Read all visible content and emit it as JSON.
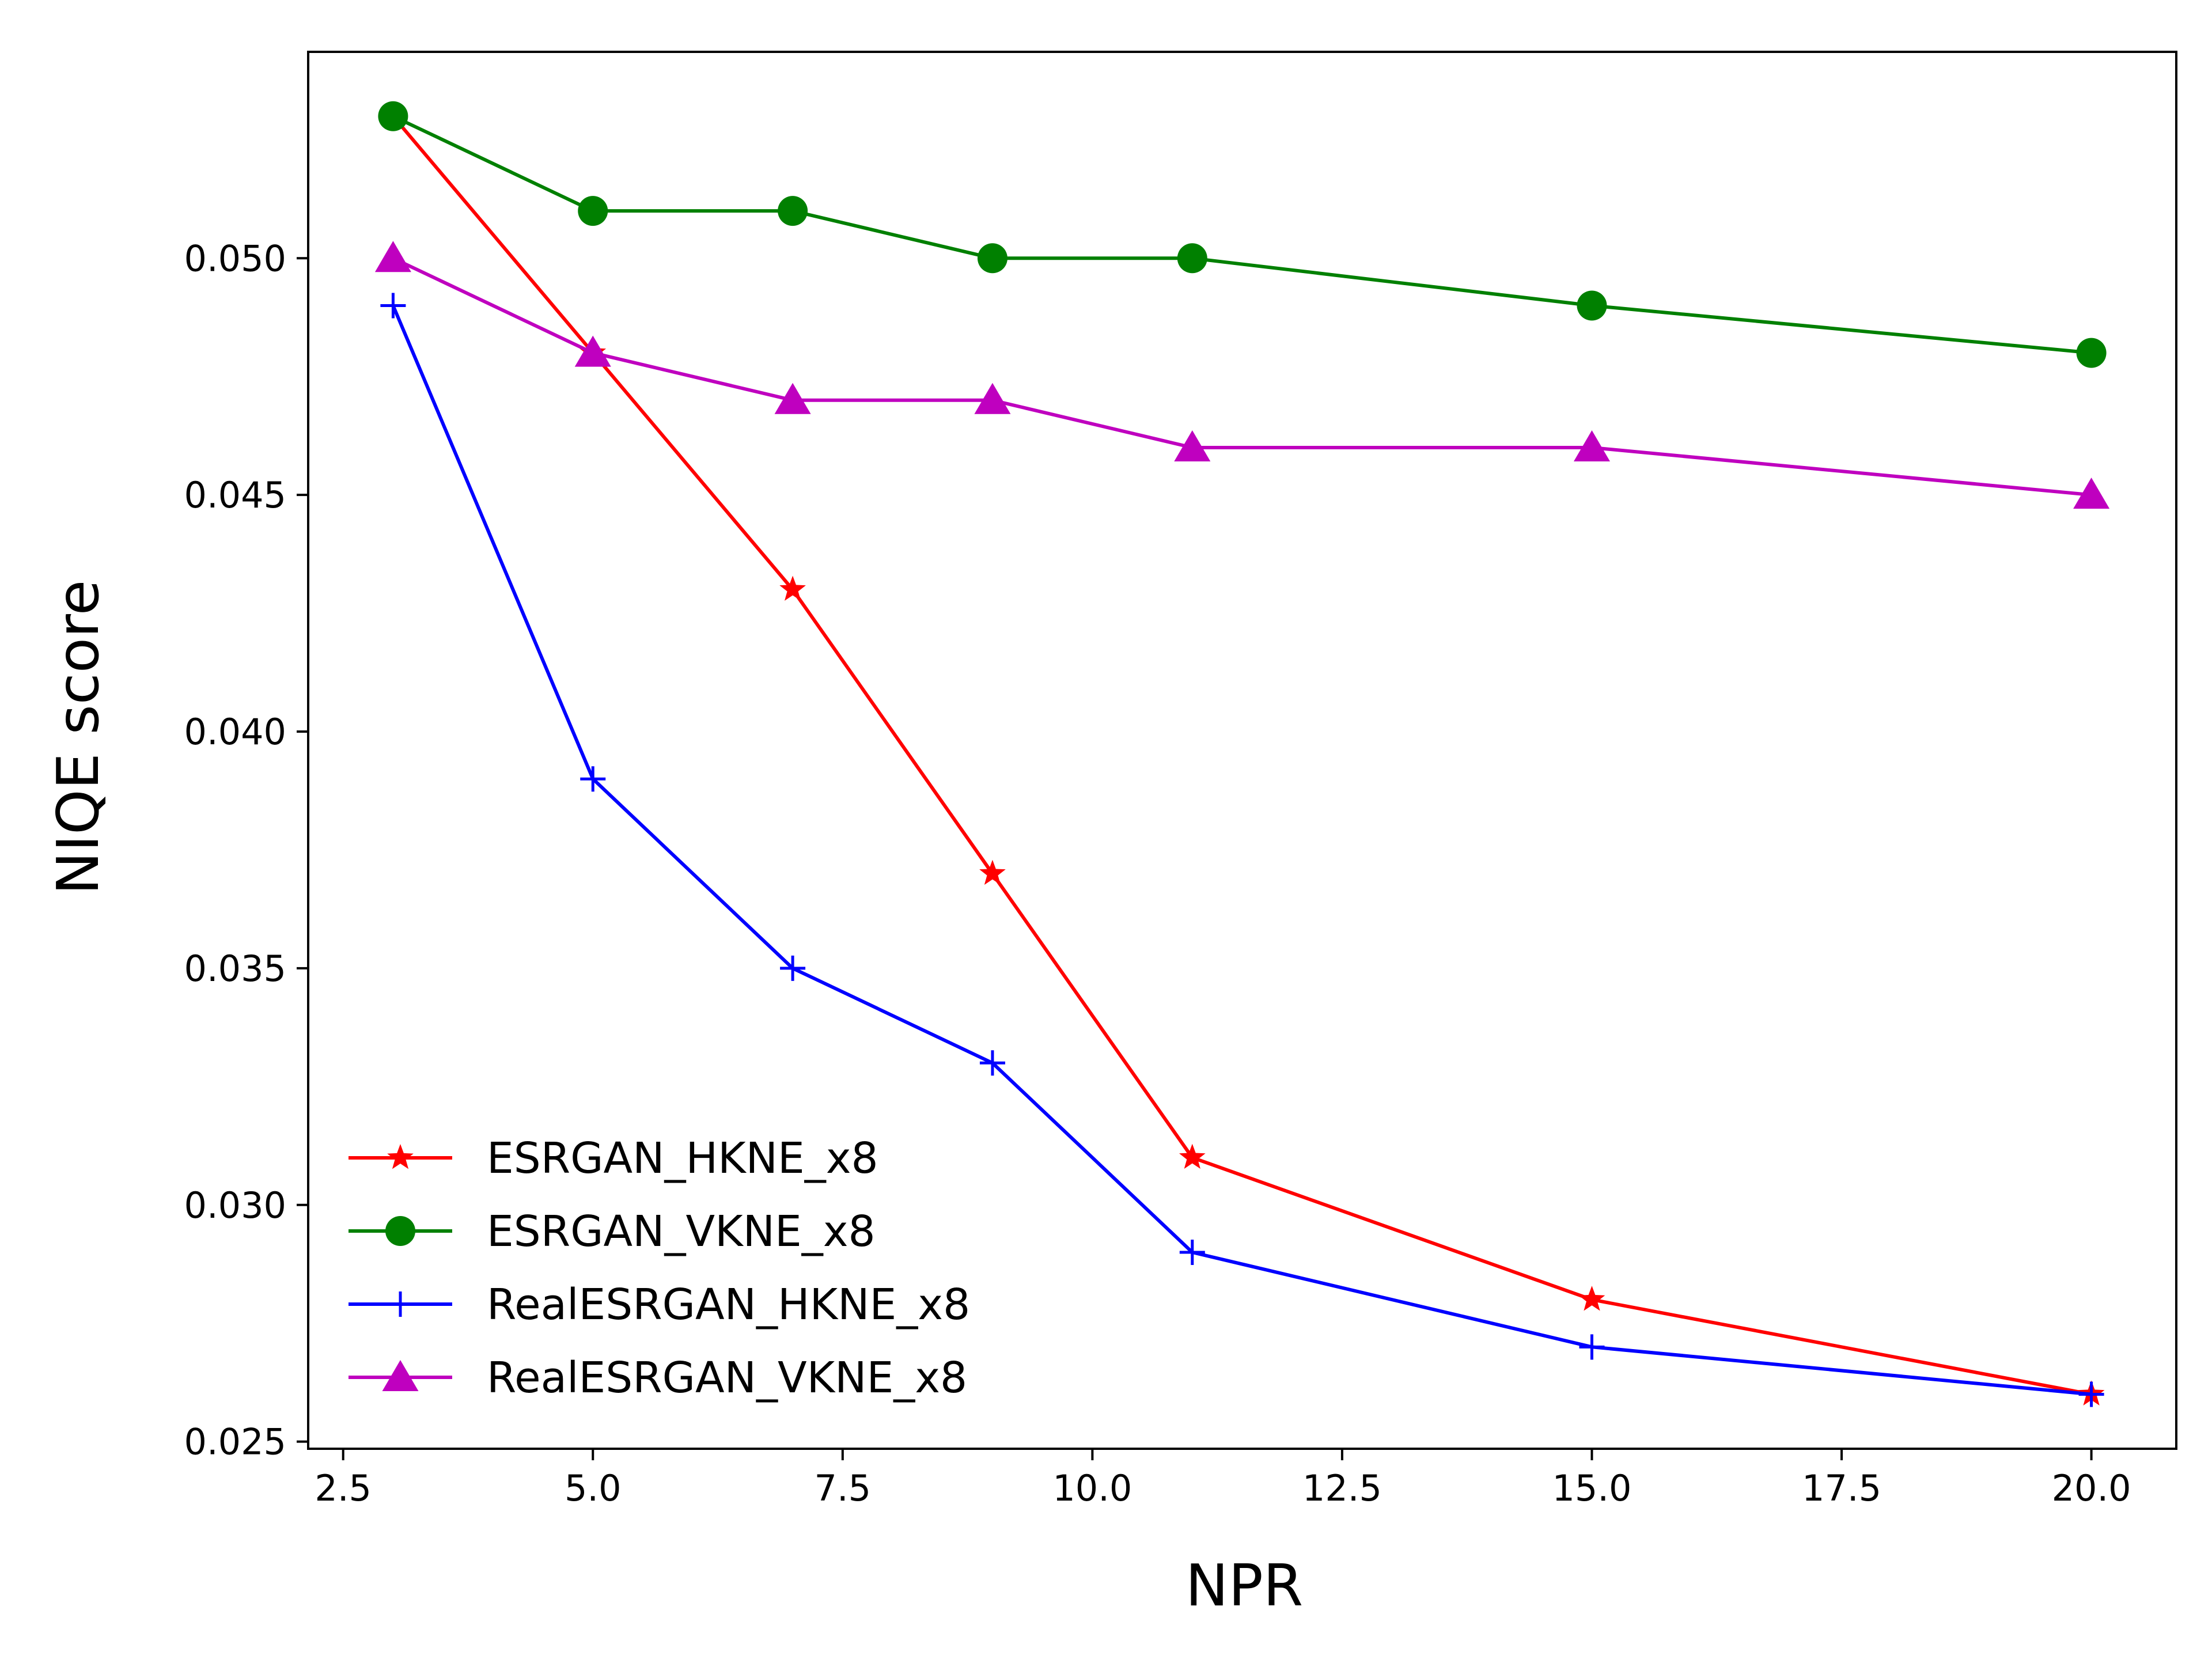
{
  "chart_data": {
    "type": "line",
    "title": "",
    "xlabel": "NPR",
    "ylabel": "NIQE score",
    "xlim": [
      2.15,
      20.85
    ],
    "ylim": [
      0.02485,
      0.05436
    ],
    "xticks": [
      2.5,
      5.0,
      7.5,
      10.0,
      12.5,
      15.0,
      17.5,
      20.0
    ],
    "xtick_labels": [
      "2.5",
      "5.0",
      "7.5",
      "10.0",
      "12.5",
      "15.0",
      "17.5",
      "20.0"
    ],
    "yticks": [
      0.025,
      0.03,
      0.035,
      0.04,
      0.045,
      0.05
    ],
    "ytick_labels": [
      "0.025",
      "0.030",
      "0.035",
      "0.040",
      "0.045",
      "0.050"
    ],
    "grid": false,
    "legend_position": "lower-left",
    "x": [
      3,
      5,
      7,
      9,
      11,
      15,
      20
    ],
    "series": [
      {
        "name": "ESRGAN_HKNE_x8",
        "color": "#ff0000",
        "marker": "star",
        "values": [
          0.053,
          0.048,
          0.043,
          0.037,
          0.031,
          0.028,
          0.026
        ]
      },
      {
        "name": "ESRGAN_VKNE_x8",
        "color": "#008000",
        "marker": "circle",
        "values": [
          0.053,
          0.051,
          0.051,
          0.05,
          0.05,
          0.049,
          0.048
        ]
      },
      {
        "name": "RealESRGAN_HKNE_x8",
        "color": "#0000ff",
        "marker": "plus",
        "values": [
          0.049,
          0.039,
          0.035,
          0.033,
          0.029,
          0.027,
          0.026
        ]
      },
      {
        "name": "RealESRGAN_VKNE_x8",
        "color": "#bf00bf",
        "marker": "triangle",
        "values": [
          0.05,
          0.048,
          0.047,
          0.047,
          0.046,
          0.046,
          0.045
        ]
      }
    ]
  }
}
